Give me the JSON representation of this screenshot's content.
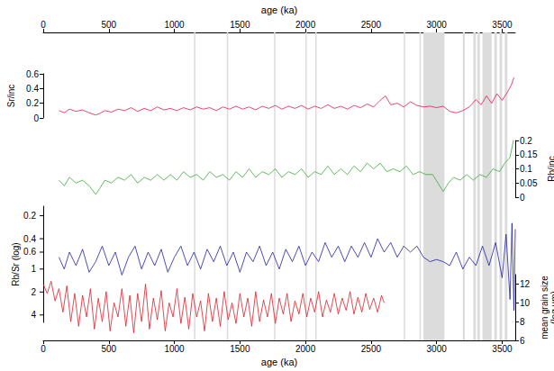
{
  "chart_data": {
    "type": "line",
    "xlabel": "age (ka)",
    "xlim": [
      0,
      3600
    ],
    "xticks": [
      0,
      500,
      1000,
      1500,
      2000,
      2500,
      3000,
      3500
    ],
    "grid": false,
    "bands": [
      [
        1150,
        1160
      ],
      [
        1400,
        1410
      ],
      [
        1760,
        1770
      ],
      [
        2000,
        2010
      ],
      [
        2075,
        2085
      ],
      [
        2750,
        2760
      ],
      [
        2870,
        2880
      ],
      [
        2900,
        3060
      ],
      [
        3200,
        3215
      ],
      [
        3280,
        3300
      ],
      [
        3310,
        3330
      ],
      [
        3350,
        3420
      ],
      [
        3440,
        3460
      ],
      [
        3480,
        3500
      ],
      [
        3520,
        3540
      ]
    ],
    "series": [
      {
        "ylabel": "Sr/inc",
        "color": "#e3194b",
        "ylim": [
          0,
          0.6
        ],
        "yticks": [
          0,
          0.2,
          0.4,
          0.6
        ],
        "x": [
          120,
          160,
          200,
          250,
          300,
          350,
          400,
          430,
          470,
          520,
          570,
          620,
          670,
          720,
          770,
          820,
          870,
          920,
          970,
          1020,
          1070,
          1120,
          1170,
          1220,
          1270,
          1320,
          1370,
          1420,
          1470,
          1520,
          1570,
          1620,
          1670,
          1720,
          1770,
          1820,
          1870,
          1920,
          1970,
          2020,
          2070,
          2120,
          2170,
          2220,
          2270,
          2320,
          2370,
          2420,
          2470,
          2520,
          2570,
          2610,
          2650,
          2700,
          2750,
          2800,
          2850,
          2900,
          2950,
          3000,
          3050,
          3100,
          3150,
          3200,
          3250,
          3300,
          3340,
          3380,
          3420,
          3460,
          3500,
          3540,
          3570,
          3590
        ],
        "values": [
          0.1,
          0.07,
          0.12,
          0.09,
          0.11,
          0.07,
          0.04,
          0.06,
          0.1,
          0.08,
          0.12,
          0.1,
          0.14,
          0.09,
          0.13,
          0.1,
          0.15,
          0.11,
          0.13,
          0.1,
          0.14,
          0.11,
          0.15,
          0.12,
          0.14,
          0.1,
          0.15,
          0.12,
          0.16,
          0.12,
          0.15,
          0.11,
          0.16,
          0.13,
          0.17,
          0.12,
          0.16,
          0.13,
          0.17,
          0.12,
          0.16,
          0.13,
          0.18,
          0.13,
          0.16,
          0.12,
          0.17,
          0.14,
          0.19,
          0.15,
          0.24,
          0.3,
          0.18,
          0.2,
          0.15,
          0.22,
          0.17,
          0.15,
          0.16,
          0.14,
          0.16,
          0.09,
          0.07,
          0.1,
          0.15,
          0.25,
          0.18,
          0.3,
          0.2,
          0.33,
          0.24,
          0.35,
          0.45,
          0.55
        ]
      },
      {
        "ylabel": null,
        "y2label": "Rb/inc",
        "color": "#3bab3a",
        "axis": "y2",
        "y2lim": [
          0,
          0.2
        ],
        "y2ticks": [
          0,
          0.05,
          0.1,
          0.15,
          0.2
        ],
        "x": [
          120,
          160,
          200,
          250,
          300,
          350,
          400,
          430,
          470,
          520,
          570,
          620,
          670,
          720,
          770,
          820,
          870,
          920,
          970,
          1020,
          1070,
          1120,
          1170,
          1220,
          1270,
          1320,
          1370,
          1420,
          1470,
          1520,
          1570,
          1620,
          1670,
          1720,
          1770,
          1820,
          1870,
          1920,
          1970,
          2020,
          2070,
          2120,
          2170,
          2220,
          2270,
          2320,
          2370,
          2420,
          2470,
          2520,
          2570,
          2620,
          2670,
          2720,
          2770,
          2820,
          2870,
          2920,
          2970,
          3010,
          3050,
          3090,
          3130,
          3180,
          3230,
          3280,
          3330,
          3380,
          3430,
          3480,
          3520,
          3560,
          3590
        ],
        "values": [
          0.06,
          0.04,
          0.07,
          0.05,
          0.06,
          0.04,
          0.01,
          0.03,
          0.06,
          0.05,
          0.07,
          0.06,
          0.08,
          0.05,
          0.07,
          0.06,
          0.08,
          0.06,
          0.08,
          0.06,
          0.09,
          0.07,
          0.08,
          0.06,
          0.09,
          0.07,
          0.08,
          0.06,
          0.09,
          0.07,
          0.1,
          0.07,
          0.09,
          0.08,
          0.1,
          0.07,
          0.09,
          0.08,
          0.1,
          0.07,
          0.09,
          0.08,
          0.11,
          0.08,
          0.1,
          0.08,
          0.11,
          0.09,
          0.12,
          0.1,
          0.12,
          0.09,
          0.1,
          0.09,
          0.11,
          0.08,
          0.09,
          0.08,
          0.08,
          0.05,
          0.02,
          0.05,
          0.07,
          0.06,
          0.08,
          0.06,
          0.08,
          0.07,
          0.1,
          0.09,
          0.12,
          0.14,
          0.21
        ]
      },
      {
        "ylabel": "Rb/Sr (log)",
        "color": "#1f1f9e",
        "log": "y",
        "ylim": [
          5,
          0.15
        ],
        "yticks": [
          0.2,
          0.4,
          0.6,
          1,
          2,
          4
        ],
        "x": [
          120,
          160,
          200,
          250,
          300,
          350,
          400,
          450,
          500,
          550,
          600,
          650,
          700,
          750,
          800,
          850,
          900,
          950,
          1000,
          1050,
          1100,
          1150,
          1200,
          1250,
          1300,
          1350,
          1400,
          1450,
          1500,
          1550,
          1600,
          1650,
          1700,
          1750,
          1800,
          1850,
          1900,
          1950,
          2000,
          2050,
          2100,
          2150,
          2200,
          2250,
          2300,
          2350,
          2400,
          2450,
          2500,
          2550,
          2600,
          2650,
          2700,
          2750,
          2800,
          2850,
          2900,
          2950,
          3000,
          3050,
          3100,
          3150,
          3200,
          3250,
          3300,
          3350,
          3400,
          3450,
          3500,
          3530,
          3560,
          3575,
          3590,
          3600
        ],
        "values": [
          0.7,
          1.0,
          0.6,
          0.9,
          0.55,
          1.1,
          0.8,
          0.5,
          0.9,
          0.6,
          1.2,
          0.7,
          0.5,
          1.0,
          0.6,
          0.9,
          0.55,
          1.1,
          0.7,
          0.5,
          0.9,
          0.6,
          1.0,
          0.55,
          0.8,
          0.5,
          0.9,
          0.6,
          1.1,
          0.6,
          0.8,
          0.5,
          0.9,
          0.6,
          1.0,
          0.55,
          0.8,
          0.5,
          0.9,
          0.6,
          0.8,
          0.45,
          0.7,
          0.5,
          0.8,
          0.5,
          0.7,
          0.45,
          0.7,
          0.4,
          0.6,
          0.45,
          0.7,
          0.5,
          0.6,
          0.5,
          0.7,
          0.8,
          0.75,
          0.8,
          0.9,
          0.6,
          1.0,
          0.7,
          0.9,
          0.5,
          0.9,
          0.45,
          1.3,
          0.35,
          2.5,
          0.25,
          3.5,
          0.3
        ]
      },
      {
        "ylabel": null,
        "y2label": "mean grain size\n(log µm)",
        "color": "#d7202b",
        "axis": "y2",
        "y2lim": [
          6,
          13
        ],
        "y2ticks": [
          6,
          8,
          10,
          12
        ],
        "x": [
          0,
          30,
          60,
          90,
          120,
          150,
          180,
          210,
          240,
          270,
          300,
          330,
          360,
          390,
          420,
          450,
          480,
          510,
          540,
          570,
          600,
          630,
          660,
          690,
          720,
          750,
          780,
          810,
          840,
          870,
          900,
          930,
          960,
          990,
          1020,
          1050,
          1080,
          1110,
          1140,
          1170,
          1200,
          1230,
          1260,
          1290,
          1320,
          1350,
          1380,
          1410,
          1440,
          1470,
          1500,
          1530,
          1560,
          1590,
          1620,
          1650,
          1680,
          1710,
          1740,
          1770,
          1800,
          1830,
          1860,
          1890,
          1920,
          1950,
          1980,
          2010,
          2040,
          2070,
          2100,
          2130,
          2160,
          2190,
          2220,
          2250,
          2280,
          2310,
          2340,
          2370,
          2400,
          2430,
          2460,
          2490,
          2520,
          2550,
          2580,
          2600
        ],
        "values": [
          12,
          11,
          12.3,
          10.2,
          11.5,
          9,
          11.8,
          8,
          11,
          7.5,
          10.8,
          8.5,
          11.5,
          7.2,
          10.5,
          8,
          11.2,
          7,
          10,
          8.5,
          11.5,
          7.5,
          10.8,
          6.8,
          11,
          8,
          12,
          7.2,
          10.5,
          8.2,
          11.3,
          7,
          10,
          8.5,
          11.5,
          7.8,
          10.6,
          7.2,
          11,
          8.5,
          10.2,
          7,
          11,
          8,
          10.5,
          7.5,
          11.2,
          8.2,
          10,
          7.8,
          11,
          8.5,
          10.5,
          7.5,
          11.2,
          8,
          10.3,
          8.5,
          11,
          7.8,
          10.5,
          8.8,
          11,
          8,
          10.2,
          8.8,
          11,
          8.5,
          10.5,
          9,
          11.2,
          8.5,
          10.3,
          9,
          11,
          8.8,
          10.5,
          9.2,
          11.2,
          8.8,
          10.6,
          9,
          11,
          9.3,
          10.5,
          9,
          10.8,
          10
        ]
      }
    ]
  }
}
